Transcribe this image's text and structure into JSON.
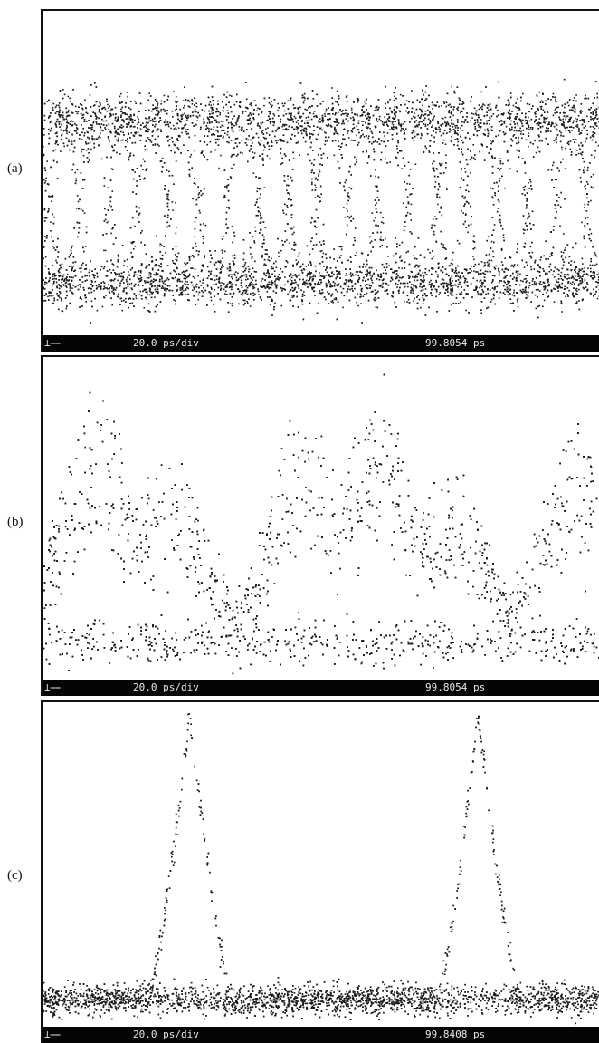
{
  "chart_data": [
    {
      "type": "scatter",
      "panel_label": "(a)",
      "timebase": "20.0 ps/div",
      "position": "99.8054 ps",
      "marker": "⊥⎯⎯",
      "color": "#1a1a1a"
    },
    {
      "type": "scatter",
      "panel_label": "(b)",
      "timebase": "20.0 ps/div",
      "position": "99.8054 ps",
      "marker": "⊥⎯⎯",
      "color": "#1a1a1a"
    },
    {
      "type": "scatter",
      "panel_label": "(c)",
      "timebase": "20.0 ps/div",
      "position": "99.8408 ps",
      "marker": "⊥⎯⎯",
      "color": "#1a1a1a"
    }
  ]
}
